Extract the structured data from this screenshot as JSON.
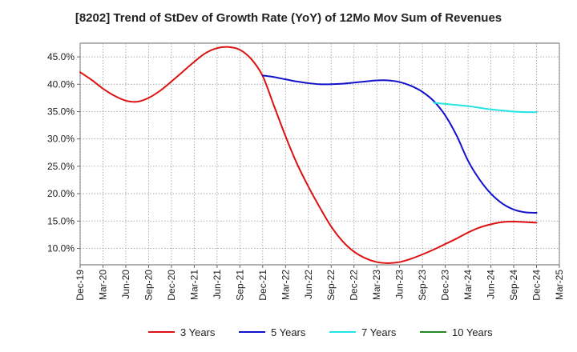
{
  "chart_data": {
    "type": "line",
    "title": "[8202]  Trend of StDev of Growth Rate (YoY) of 12Mo Mov Sum of Revenues",
    "xlabel": "",
    "ylabel": "",
    "x_tick_labels": [
      "Dec-19",
      "Mar-20",
      "Jun-20",
      "Sep-20",
      "Dec-20",
      "Mar-21",
      "Jun-21",
      "Sep-21",
      "Dec-21",
      "Mar-22",
      "Jun-22",
      "Sep-22",
      "Dec-22",
      "Mar-23",
      "Jun-23",
      "Sep-23",
      "Dec-23",
      "Mar-24",
      "Jun-24",
      "Sep-24",
      "Dec-24",
      "Mar-25"
    ],
    "y_tick_labels": [
      "10.0%",
      "15.0%",
      "20.0%",
      "25.0%",
      "30.0%",
      "35.0%",
      "40.0%",
      "45.0%"
    ],
    "y_ticks": [
      10,
      15,
      20,
      25,
      30,
      35,
      40,
      45
    ],
    "ylim": [
      7.0,
      47.5
    ],
    "xlim": [
      0,
      21
    ],
    "grid": true,
    "legend_position": "bottom",
    "series": [
      {
        "name": "3 Years",
        "color": "#dd1111",
        "points": [
          [
            0,
            42.2
          ],
          [
            0.5,
            40.8
          ],
          [
            1,
            39.2
          ],
          [
            1.5,
            37.9
          ],
          [
            2,
            37.0
          ],
          [
            2.5,
            36.8
          ],
          [
            3,
            37.5
          ],
          [
            3.5,
            38.8
          ],
          [
            4,
            40.5
          ],
          [
            4.5,
            42.3
          ],
          [
            5,
            44.1
          ],
          [
            5.5,
            45.7
          ],
          [
            6,
            46.6
          ],
          [
            6.5,
            46.8
          ],
          [
            7,
            46.3
          ],
          [
            7.5,
            44.6
          ],
          [
            8,
            41.5
          ],
          [
            8.5,
            36.0
          ],
          [
            9,
            30.5
          ],
          [
            9.5,
            25.5
          ],
          [
            10,
            21.3
          ],
          [
            10.5,
            17.5
          ],
          [
            11,
            14.0
          ],
          [
            11.5,
            11.3
          ],
          [
            12,
            9.4
          ],
          [
            12.5,
            8.2
          ],
          [
            13,
            7.5
          ],
          [
            13.5,
            7.3
          ],
          [
            14,
            7.5
          ],
          [
            14.5,
            8.1
          ],
          [
            15,
            8.9
          ],
          [
            15.5,
            9.8
          ],
          [
            16,
            10.8
          ],
          [
            16.5,
            11.8
          ],
          [
            17,
            12.9
          ],
          [
            17.5,
            13.8
          ],
          [
            18,
            14.4
          ],
          [
            18.5,
            14.8
          ],
          [
            19,
            14.9
          ],
          [
            19.5,
            14.8
          ],
          [
            20,
            14.7
          ]
        ]
      },
      {
        "name": "5 Years",
        "color": "#1111cc",
        "points": [
          [
            8,
            41.6
          ],
          [
            8.5,
            41.3
          ],
          [
            9,
            40.9
          ],
          [
            9.5,
            40.5
          ],
          [
            10,
            40.2
          ],
          [
            10.5,
            40.0
          ],
          [
            11,
            40.0
          ],
          [
            11.5,
            40.1
          ],
          [
            12,
            40.3
          ],
          [
            12.5,
            40.5
          ],
          [
            13,
            40.7
          ],
          [
            13.5,
            40.7
          ],
          [
            14,
            40.4
          ],
          [
            14.5,
            39.7
          ],
          [
            15,
            38.6
          ],
          [
            15.5,
            36.9
          ],
          [
            16,
            34.3
          ],
          [
            16.5,
            30.6
          ],
          [
            17,
            26.0
          ],
          [
            17.5,
            22.6
          ],
          [
            18,
            20.0
          ],
          [
            18.5,
            18.2
          ],
          [
            19,
            17.1
          ],
          [
            19.5,
            16.6
          ],
          [
            20,
            16.5
          ]
        ]
      },
      {
        "name": "7 Years",
        "color": "#22e5e5",
        "points": [
          [
            15.5,
            36.6
          ],
          [
            16,
            36.4
          ],
          [
            16.5,
            36.2
          ],
          [
            17,
            36.0
          ],
          [
            17.5,
            35.7
          ],
          [
            18,
            35.4
          ],
          [
            18.5,
            35.2
          ],
          [
            19,
            35.0
          ],
          [
            19.5,
            34.9
          ],
          [
            20,
            34.9
          ]
        ]
      },
      {
        "name": "10 Years",
        "color": "#228822",
        "points": []
      }
    ]
  }
}
